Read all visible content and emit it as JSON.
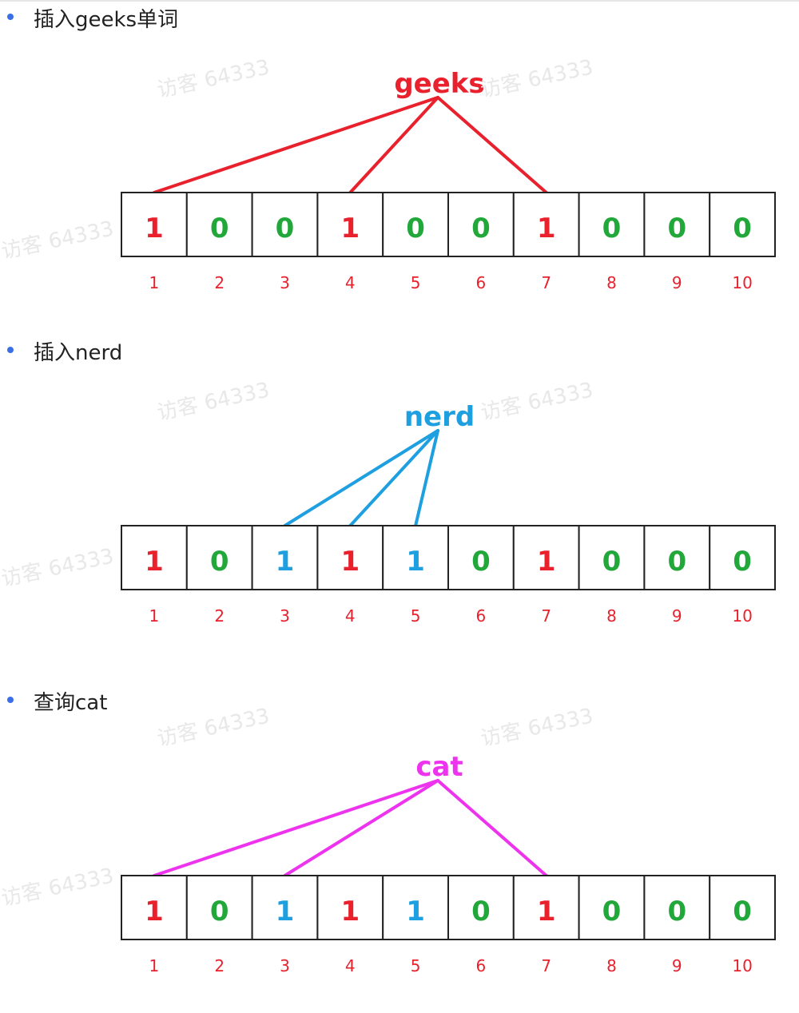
{
  "sections": [
    {
      "heading": "插入geeks单词",
      "word": "geeks",
      "word_color": "#e8212d",
      "line_color": "#e8212d",
      "cells": [
        {
          "index": "1",
          "bit": "1",
          "color": "#e8212d"
        },
        {
          "index": "2",
          "bit": "0",
          "color": "#22a83a"
        },
        {
          "index": "3",
          "bit": "0",
          "color": "#22a83a"
        },
        {
          "index": "4",
          "bit": "1",
          "color": "#e8212d"
        },
        {
          "index": "5",
          "bit": "0",
          "color": "#22a83a"
        },
        {
          "index": "6",
          "bit": "0",
          "color": "#22a83a"
        },
        {
          "index": "7",
          "bit": "1",
          "color": "#e8212d"
        },
        {
          "index": "8",
          "bit": "0",
          "color": "#22a83a"
        },
        {
          "index": "9",
          "bit": "0",
          "color": "#22a83a"
        },
        {
          "index": "10",
          "bit": "0",
          "color": "#22a83a"
        }
      ],
      "hash_targets": [
        1,
        4,
        7
      ]
    },
    {
      "heading": "插入nerd",
      "word": "nerd",
      "word_color": "#1ea0e0",
      "line_color": "#1ea0e0",
      "cells": [
        {
          "index": "1",
          "bit": "1",
          "color": "#e8212d"
        },
        {
          "index": "2",
          "bit": "0",
          "color": "#22a83a"
        },
        {
          "index": "3",
          "bit": "1",
          "color": "#1ea0e0"
        },
        {
          "index": "4",
          "bit": "1",
          "color": "#e8212d"
        },
        {
          "index": "5",
          "bit": "1",
          "color": "#1ea0e0"
        },
        {
          "index": "6",
          "bit": "0",
          "color": "#22a83a"
        },
        {
          "index": "7",
          "bit": "1",
          "color": "#e8212d"
        },
        {
          "index": "8",
          "bit": "0",
          "color": "#22a83a"
        },
        {
          "index": "9",
          "bit": "0",
          "color": "#22a83a"
        },
        {
          "index": "10",
          "bit": "0",
          "color": "#22a83a"
        }
      ],
      "hash_targets": [
        3,
        4,
        5
      ]
    },
    {
      "heading": "查询cat",
      "word": "cat",
      "word_color": "#ee33ee",
      "line_color": "#ee33ee",
      "cells": [
        {
          "index": "1",
          "bit": "1",
          "color": "#e8212d"
        },
        {
          "index": "2",
          "bit": "0",
          "color": "#22a83a"
        },
        {
          "index": "3",
          "bit": "1",
          "color": "#1ea0e0"
        },
        {
          "index": "4",
          "bit": "1",
          "color": "#e8212d"
        },
        {
          "index": "5",
          "bit": "1",
          "color": "#1ea0e0"
        },
        {
          "index": "6",
          "bit": "0",
          "color": "#22a83a"
        },
        {
          "index": "7",
          "bit": "1",
          "color": "#e8212d"
        },
        {
          "index": "8",
          "bit": "0",
          "color": "#22a83a"
        },
        {
          "index": "9",
          "bit": "0",
          "color": "#22a83a"
        },
        {
          "index": "10",
          "bit": "0",
          "color": "#22a83a"
        }
      ],
      "hash_targets": [
        1,
        3,
        7
      ]
    }
  ],
  "watermark": "访客 64333",
  "colors": {
    "bullet": "#3b6fe8",
    "index_label": "#e8212d",
    "cell_border": "#222222"
  }
}
